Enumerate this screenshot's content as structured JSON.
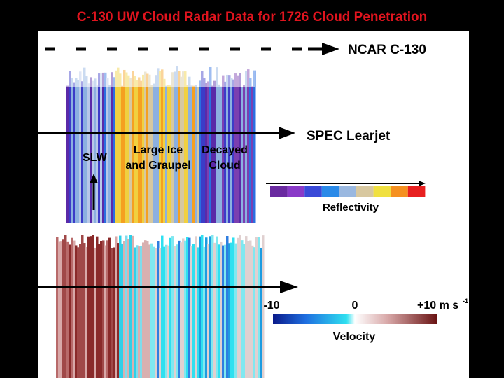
{
  "title": "C-130 UW Cloud Radar Data for 1726 Cloud Penetration",
  "aircraft": {
    "upper": "NCAR C-130",
    "lower": "SPEC Learjet"
  },
  "regions": {
    "slw": "SLW",
    "large_ice": [
      "Large Ice",
      "and Graupel"
    ],
    "decayed": [
      "Decayed",
      "Cloud"
    ]
  },
  "reflectivity": {
    "label": "Reflectivity"
  },
  "velocity": {
    "label": "Velocity",
    "min": "-10",
    "mid": "0",
    "max": "+10 m s",
    "max_exponent": "-1"
  }
}
